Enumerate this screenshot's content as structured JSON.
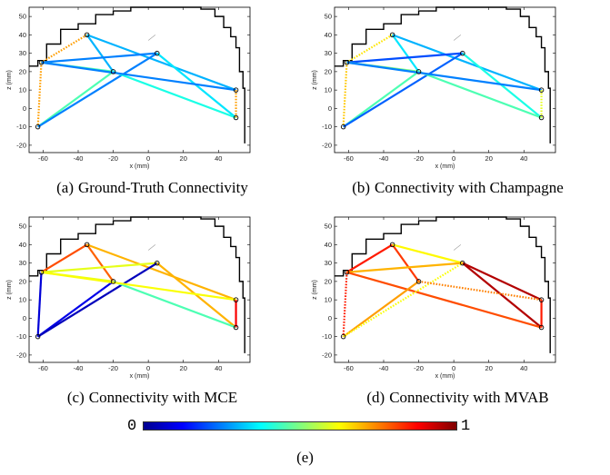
{
  "figure": {
    "colorbar": {
      "min_label": "0",
      "max_label": "1",
      "colormap": "jet",
      "stops": [
        "#00008f",
        "#0000ff",
        "#0080ff",
        "#00ffff",
        "#80ff80",
        "#ffff00",
        "#ff8000",
        "#ff0000",
        "#800000"
      ]
    },
    "label": "(e)"
  },
  "chart_data": [
    {
      "id": "a",
      "caption_id": "(a)",
      "caption": "Ground-Truth Connectivity",
      "type": "scatter",
      "xlabel": "x (mm)",
      "ylabel": "z (mm)",
      "xlim": [
        -68,
        58
      ],
      "ylim": [
        -24,
        55
      ],
      "xticks": [
        -60,
        -40,
        -20,
        0,
        20,
        40
      ],
      "yticks": [
        -20,
        -10,
        0,
        10,
        20,
        30,
        40,
        50
      ],
      "head_outline": [
        [
          -68,
          23
        ],
        [
          -63,
          26
        ],
        [
          -58,
          35
        ],
        [
          -50,
          43
        ],
        [
          -40,
          46
        ],
        [
          -30,
          51
        ],
        [
          -20,
          53
        ],
        [
          -10,
          55
        ],
        [
          0,
          55
        ],
        [
          10,
          55
        ],
        [
          20,
          55
        ],
        [
          30,
          54
        ],
        [
          38,
          50
        ],
        [
          43,
          44
        ],
        [
          47,
          39
        ],
        [
          50,
          33
        ],
        [
          52,
          28
        ],
        [
          52,
          20
        ],
        [
          54,
          11
        ],
        [
          55,
          4
        ],
        [
          55,
          -5
        ],
        [
          55,
          -19
        ]
      ],
      "mark": [
        [
          0,
          37
        ],
        [
          4,
          40
        ]
      ],
      "nodes": [
        [
          -35,
          40
        ],
        [
          5,
          30
        ],
        [
          -61,
          25
        ],
        [
          -20,
          20
        ],
        [
          50,
          10
        ],
        [
          50,
          -5
        ],
        [
          -63,
          -10
        ]
      ],
      "edges": [
        {
          "from": 0,
          "to": 2,
          "value": 0.72,
          "style": "dotted"
        },
        {
          "from": 0,
          "to": 3,
          "value": 0.3,
          "style": "solid"
        },
        {
          "from": 0,
          "to": 4,
          "value": 0.3,
          "style": "solid"
        },
        {
          "from": 2,
          "to": 6,
          "value": 0.72,
          "style": "dotted"
        },
        {
          "from": 2,
          "to": 1,
          "value": 0.25,
          "style": "solid"
        },
        {
          "from": 2,
          "to": 3,
          "value": 0.45,
          "style": "solid"
        },
        {
          "from": 6,
          "to": 3,
          "value": 0.45,
          "style": "solid"
        },
        {
          "from": 6,
          "to": 1,
          "value": 0.25,
          "style": "solid"
        },
        {
          "from": 1,
          "to": 5,
          "value": 0.35,
          "style": "solid"
        },
        {
          "from": 3,
          "to": 5,
          "value": 0.4,
          "style": "solid"
        },
        {
          "from": 2,
          "to": 4,
          "value": 0.25,
          "style": "solid"
        },
        {
          "from": 4,
          "to": 5,
          "value": 0.72,
          "style": "dotted"
        }
      ]
    },
    {
      "id": "b",
      "caption_id": "(b)",
      "caption": "Connectivity with Champagne",
      "type": "scatter",
      "xlabel": "x (mm)",
      "ylabel": "z (mm)",
      "xlim": [
        -68,
        58
      ],
      "ylim": [
        -24,
        55
      ],
      "xticks": [
        -60,
        -40,
        -20,
        0,
        20,
        40
      ],
      "yticks": [
        -20,
        -10,
        0,
        10,
        20,
        30,
        40,
        50
      ],
      "head_outline": [
        [
          -68,
          23
        ],
        [
          -63,
          26
        ],
        [
          -58,
          35
        ],
        [
          -50,
          43
        ],
        [
          -40,
          46
        ],
        [
          -30,
          51
        ],
        [
          -20,
          53
        ],
        [
          -10,
          55
        ],
        [
          0,
          55
        ],
        [
          10,
          55
        ],
        [
          20,
          55
        ],
        [
          30,
          54
        ],
        [
          38,
          50
        ],
        [
          43,
          44
        ],
        [
          47,
          39
        ],
        [
          50,
          33
        ],
        [
          52,
          28
        ],
        [
          52,
          20
        ],
        [
          54,
          11
        ],
        [
          55,
          4
        ],
        [
          55,
          -5
        ],
        [
          55,
          -19
        ]
      ],
      "mark": [
        [
          0,
          37
        ],
        [
          4,
          40
        ]
      ],
      "nodes": [
        [
          -35,
          40
        ],
        [
          5,
          30
        ],
        [
          -61,
          25
        ],
        [
          -20,
          20
        ],
        [
          50,
          10
        ],
        [
          50,
          -5
        ],
        [
          -63,
          -10
        ]
      ],
      "edges": [
        {
          "from": 0,
          "to": 2,
          "value": 0.65,
          "style": "dotted"
        },
        {
          "from": 0,
          "to": 3,
          "value": 0.35,
          "style": "solid"
        },
        {
          "from": 0,
          "to": 4,
          "value": 0.3,
          "style": "solid"
        },
        {
          "from": 2,
          "to": 6,
          "value": 0.68,
          "style": "dotted"
        },
        {
          "from": 2,
          "to": 1,
          "value": 0.2,
          "style": "solid"
        },
        {
          "from": 2,
          "to": 3,
          "value": 0.5,
          "style": "solid"
        },
        {
          "from": 6,
          "to": 3,
          "value": 0.45,
          "style": "solid"
        },
        {
          "from": 6,
          "to": 1,
          "value": 0.22,
          "style": "solid"
        },
        {
          "from": 1,
          "to": 5,
          "value": 0.4,
          "style": "solid"
        },
        {
          "from": 3,
          "to": 5,
          "value": 0.45,
          "style": "solid"
        },
        {
          "from": 2,
          "to": 4,
          "value": 0.25,
          "style": "solid"
        },
        {
          "from": 4,
          "to": 5,
          "value": 0.6,
          "style": "dotted"
        }
      ]
    },
    {
      "id": "c",
      "caption_id": "(c)",
      "caption": "Connectivity with MCE",
      "type": "scatter",
      "xlabel": "x (mm)",
      "ylabel": "z (mm)",
      "xlim": [
        -68,
        58
      ],
      "ylim": [
        -24,
        55
      ],
      "xticks": [
        -60,
        -40,
        -20,
        0,
        20,
        40
      ],
      "yticks": [
        -20,
        -10,
        0,
        10,
        20,
        30,
        40,
        50
      ],
      "head_outline": [
        [
          -68,
          23
        ],
        [
          -63,
          26
        ],
        [
          -58,
          35
        ],
        [
          -50,
          43
        ],
        [
          -40,
          46
        ],
        [
          -30,
          51
        ],
        [
          -20,
          53
        ],
        [
          -10,
          55
        ],
        [
          0,
          55
        ],
        [
          10,
          55
        ],
        [
          20,
          55
        ],
        [
          30,
          54
        ],
        [
          38,
          50
        ],
        [
          43,
          44
        ],
        [
          47,
          39
        ],
        [
          50,
          33
        ],
        [
          52,
          28
        ],
        [
          52,
          20
        ],
        [
          54,
          11
        ],
        [
          55,
          4
        ],
        [
          55,
          -5
        ],
        [
          55,
          -19
        ]
      ],
      "mark": [
        [
          0,
          37
        ],
        [
          4,
          40
        ]
      ],
      "nodes": [
        [
          -35,
          40
        ],
        [
          5,
          30
        ],
        [
          -61,
          25
        ],
        [
          -20,
          20
        ],
        [
          50,
          10
        ],
        [
          50,
          -5
        ],
        [
          -63,
          -10
        ]
      ],
      "edges": [
        {
          "from": 0,
          "to": 2,
          "value": 0.8,
          "style": "solid"
        },
        {
          "from": 0,
          "to": 3,
          "value": 0.78,
          "style": "solid"
        },
        {
          "from": 0,
          "to": 4,
          "value": 0.7,
          "style": "solid"
        },
        {
          "from": 2,
          "to": 6,
          "value": 0.08,
          "style": "solid"
        },
        {
          "from": 2,
          "to": 1,
          "value": 0.6,
          "style": "solid"
        },
        {
          "from": 2,
          "to": 3,
          "value": 0.6,
          "style": "solid"
        },
        {
          "from": 6,
          "to": 3,
          "value": 0.1,
          "style": "solid"
        },
        {
          "from": 6,
          "to": 1,
          "value": 0.05,
          "style": "solid"
        },
        {
          "from": 1,
          "to": 5,
          "value": 0.7,
          "style": "solid"
        },
        {
          "from": 3,
          "to": 5,
          "value": 0.45,
          "style": "solid"
        },
        {
          "from": 2,
          "to": 4,
          "value": 0.62,
          "style": "solid"
        },
        {
          "from": 4,
          "to": 5,
          "value": 0.88,
          "style": "solid"
        }
      ]
    },
    {
      "id": "d",
      "caption_id": "(d)",
      "caption": "Connectivity with MVAB",
      "type": "scatter",
      "xlabel": "x (mm)",
      "ylabel": "z (mm)",
      "xlim": [
        -68,
        58
      ],
      "ylim": [
        -24,
        55
      ],
      "xticks": [
        -60,
        -40,
        -20,
        0,
        20,
        40
      ],
      "yticks": [
        -20,
        -10,
        0,
        10,
        20,
        30,
        40,
        50
      ],
      "head_outline": [
        [
          -68,
          23
        ],
        [
          -63,
          26
        ],
        [
          -58,
          35
        ],
        [
          -50,
          43
        ],
        [
          -40,
          46
        ],
        [
          -30,
          51
        ],
        [
          -20,
          53
        ],
        [
          -10,
          55
        ],
        [
          0,
          55
        ],
        [
          10,
          55
        ],
        [
          20,
          55
        ],
        [
          30,
          54
        ],
        [
          38,
          50
        ],
        [
          43,
          44
        ],
        [
          47,
          39
        ],
        [
          50,
          33
        ],
        [
          52,
          28
        ],
        [
          52,
          20
        ],
        [
          54,
          11
        ],
        [
          55,
          4
        ],
        [
          55,
          -5
        ],
        [
          55,
          -19
        ]
      ],
      "mark": [
        [
          0,
          37
        ],
        [
          4,
          40
        ]
      ],
      "nodes": [
        [
          -35,
          40
        ],
        [
          5,
          30
        ],
        [
          -61,
          25
        ],
        [
          -20,
          20
        ],
        [
          50,
          10
        ],
        [
          50,
          -5
        ],
        [
          -63,
          -10
        ]
      ],
      "edges": [
        {
          "from": 0,
          "to": 2,
          "value": 0.85,
          "style": "solid"
        },
        {
          "from": 0,
          "to": 3,
          "value": 0.82,
          "style": "solid"
        },
        {
          "from": 0,
          "to": 1,
          "value": 0.63,
          "style": "solid"
        },
        {
          "from": 1,
          "to": 5,
          "value": 0.95,
          "style": "solid"
        },
        {
          "from": 1,
          "to": 4,
          "value": 0.95,
          "style": "solid"
        },
        {
          "from": 2,
          "to": 6,
          "value": 0.85,
          "style": "dotted"
        },
        {
          "from": 2,
          "to": 1,
          "value": 0.7,
          "style": "solid"
        },
        {
          "from": 2,
          "to": 5,
          "value": 0.8,
          "style": "solid"
        },
        {
          "from": 6,
          "to": 3,
          "value": 0.72,
          "style": "solid"
        },
        {
          "from": 6,
          "to": 1,
          "value": 0.62,
          "style": "dotted"
        },
        {
          "from": 3,
          "to": 4,
          "value": 0.75,
          "style": "dotted"
        },
        {
          "from": 4,
          "to": 5,
          "value": 0.85,
          "style": "solid"
        }
      ]
    }
  ]
}
